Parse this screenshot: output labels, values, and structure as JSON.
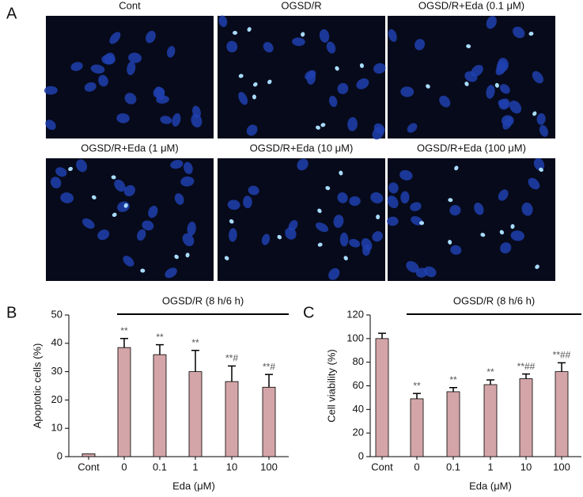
{
  "panel_a": {
    "label": "A",
    "images": [
      {
        "title": "Cont"
      },
      {
        "title": "OGSD/R"
      },
      {
        "title": "OGSD/R+Eda (0.1 μM)"
      },
      {
        "title": "OGSD/R+Eda (1 μM)"
      },
      {
        "title": "OGSD/R+Eda (10 μM)"
      },
      {
        "title": "OGSD/R+Eda (100 μM)"
      }
    ]
  },
  "chart_data": [
    {
      "type": "bar",
      "panel_label": "B",
      "group_label": "OGSD/R (8 h/6 h)",
      "xlabel": "Eda (μM)",
      "ylabel": "Apoptotic cells (%)",
      "categories": [
        "Cont",
        "0",
        "0.1",
        "1",
        "10",
        "100"
      ],
      "values": [
        1,
        38.5,
        36,
        30,
        26.5,
        24.5
      ],
      "errors": [
        null,
        3.2,
        3.5,
        7.5,
        5.5,
        4.5
      ],
      "annotations": [
        null,
        "**",
        "**",
        "**",
        "**#",
        "**#"
      ],
      "color": "#d4a5a8",
      "ylim": [
        0,
        50
      ],
      "yticks": [
        0,
        10,
        20,
        30,
        40,
        50
      ]
    },
    {
      "type": "bar",
      "panel_label": "C",
      "group_label": "OGSD/R (8 h/6 h)",
      "xlabel": "Eda (μM)",
      "ylabel": "Cell viability (%)",
      "categories": [
        "Cont",
        "0",
        "0.1",
        "1",
        "10",
        "100"
      ],
      "values": [
        100,
        49,
        55,
        61,
        66,
        72
      ],
      "errors": [
        4.5,
        4.5,
        3.5,
        4,
        4,
        7.5
      ],
      "annotations": [
        null,
        "**",
        "**",
        "**",
        "**##",
        "**##"
      ],
      "color": "#d4a5a8",
      "ylim": [
        0,
        120
      ],
      "yticks": [
        0,
        20,
        40,
        60,
        80,
        100,
        120
      ]
    }
  ]
}
